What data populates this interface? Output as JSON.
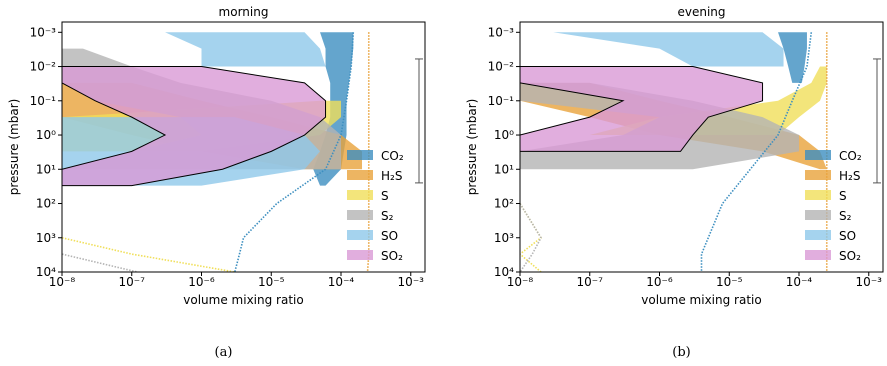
{
  "chart_data": [
    {
      "type": "band",
      "title": "morning",
      "caption": "(a)",
      "x_label": "volume mixing ratio",
      "y_label": "pressure (mbar)",
      "log_x": true,
      "log_y": true,
      "xlim": [
        1e-08,
        0.0016
      ],
      "ylim": [
        10000,
        0.0005
      ],
      "xticks": [
        {
          "value": 1e-08,
          "label": "10⁻⁸"
        },
        {
          "value": 1e-07,
          "label": "10⁻⁷"
        },
        {
          "value": 1e-06,
          "label": "10⁻⁶"
        },
        {
          "value": 1e-05,
          "label": "10⁻⁵"
        },
        {
          "value": 0.0001,
          "label": "10⁻⁴"
        },
        {
          "value": 0.001,
          "label": "10⁻³"
        }
      ],
      "yticks": [
        {
          "value": 0.001,
          "label": "10⁻³"
        },
        {
          "value": 0.01,
          "label": "10⁻²"
        },
        {
          "value": 0.1,
          "label": "10⁻¹"
        },
        {
          "value": 1,
          "label": "10⁰"
        },
        {
          "value": 10,
          "label": "10¹"
        },
        {
          "value": 100,
          "label": "10²"
        },
        {
          "value": 1000,
          "label": "10³"
        },
        {
          "value": 10000,
          "label": "10⁴"
        }
      ],
      "legend": "lower right",
      "bracket": [
        0.006,
        25
      ],
      "pressure": [
        0.001,
        0.003,
        0.01,
        0.03,
        0.1,
        0.3,
        1,
        3,
        10,
        30,
        100
      ],
      "series": [
        {
          "name": "CO₂",
          "color": "#3d8fc0",
          "low": [
            5e-05,
            6e-05,
            6e-05,
            7e-05,
            7e-05,
            7e-05,
            6e-05,
            5e-05,
            4e-05,
            5e-05,
            null
          ],
          "high": [
            0.00015,
            0.00015,
            0.00014,
            0.00013,
            0.00012,
            0.00012,
            0.00012,
            0.00011,
            0.0001,
            6e-05,
            null
          ]
        },
        {
          "name": "H₂S",
          "color": "#e9a23b",
          "low": [
            null,
            null,
            null,
            1e-08,
            1e-08,
            1e-08,
            1e-07,
            1e-06,
            3e-05,
            null,
            null
          ],
          "high": [
            null,
            null,
            null,
            1e-07,
            1e-06,
            1e-05,
            0.0001,
            0.0002,
            0.0002,
            null,
            null
          ]
        },
        {
          "name": "S",
          "color": "#f0df5a",
          "low": [
            null,
            null,
            null,
            null,
            5e-05,
            1e-08,
            1e-08,
            1e-08,
            null,
            null,
            null
          ],
          "high": [
            null,
            null,
            null,
            null,
            0.0001,
            0.0001,
            5e-05,
            1e-06,
            null,
            null,
            null
          ]
        },
        {
          "name": "S₂",
          "color": "#b4b4b4",
          "low": [
            null,
            1e-08,
            1e-08,
            1e-08,
            3e-08,
            5e-07,
            1e-06,
            1e-07,
            1e-08,
            null,
            null
          ],
          "high": [
            null,
            2e-08,
            1e-07,
            5e-07,
            1e-05,
            5e-05,
            0.0001,
            0.0001,
            0.0001,
            null,
            null
          ]
        },
        {
          "name": "SO",
          "color": "#8ec8ea",
          "low": [
            3e-07,
            1e-06,
            1e-06,
            null,
            null,
            1e-08,
            1e-08,
            1e-08,
            1e-08,
            1e-08,
            null
          ],
          "high": [
            3e-05,
            5e-05,
            6e-05,
            null,
            null,
            3e-06,
            3e-05,
            5e-05,
            3e-05,
            1e-06,
            null
          ]
        },
        {
          "name": "SO₂",
          "color": "#d99ad6",
          "edgecolor": "#000000",
          "low": [
            null,
            null,
            1e-08,
            1e-08,
            3e-08,
            1e-07,
            3e-07,
            1e-07,
            1e-08,
            1e-08,
            null
          ],
          "high": [
            null,
            null,
            1e-06,
            3e-05,
            6e-05,
            6e-05,
            3e-05,
            1e-05,
            2e-06,
            1e-07,
            null
          ]
        }
      ],
      "profile_pressure": [
        0.001,
        0.01,
        0.1,
        1,
        10,
        100,
        1000,
        3000,
        10000
      ],
      "profiles": [
        {
          "color": "#3d8fc0",
          "values": [
            0.00015,
            0.00014,
            0.00012,
            0.0001,
            6e-05,
            1.2e-05,
            4e-06,
            3.5e-06,
            3e-06
          ]
        },
        {
          "color": "#e9a23b",
          "values": [
            0.00025,
            0.00025,
            0.00025,
            0.00025,
            0.00025,
            0.00025,
            0.00025,
            0.00025,
            0.00024
          ]
        },
        {
          "color": "#f0df5a",
          "values": [
            null,
            null,
            null,
            null,
            null,
            null,
            1e-08,
            1e-07,
            3e-06
          ]
        },
        {
          "color": "#b4b4b4",
          "values": [
            null,
            null,
            null,
            null,
            null,
            null,
            null,
            1e-08,
            1.2e-07
          ]
        }
      ]
    },
    {
      "type": "band",
      "title": "evening",
      "caption": "(b)",
      "x_label": "volume mixing ratio",
      "y_label": "pressure (mbar)",
      "log_x": true,
      "log_y": true,
      "xlim": [
        1e-08,
        0.0016
      ],
      "ylim": [
        10000,
        0.0005
      ],
      "xticks": [
        {
          "value": 1e-08,
          "label": "10⁻⁸"
        },
        {
          "value": 1e-07,
          "label": "10⁻⁷"
        },
        {
          "value": 1e-06,
          "label": "10⁻⁶"
        },
        {
          "value": 1e-05,
          "label": "10⁻⁵"
        },
        {
          "value": 0.0001,
          "label": "10⁻⁴"
        },
        {
          "value": 0.001,
          "label": "10⁻³"
        }
      ],
      "yticks": [
        {
          "value": 0.001,
          "label": "10⁻³"
        },
        {
          "value": 0.01,
          "label": "10⁻²"
        },
        {
          "value": 0.1,
          "label": "10⁻¹"
        },
        {
          "value": 1,
          "label": "10⁰"
        },
        {
          "value": 10,
          "label": "10¹"
        },
        {
          "value": 100,
          "label": "10²"
        },
        {
          "value": 1000,
          "label": "10³"
        },
        {
          "value": 10000,
          "label": "10⁴"
        }
      ],
      "legend": "lower right",
      "bracket": [
        0.006,
        25
      ],
      "pressure": [
        0.001,
        0.003,
        0.01,
        0.03,
        0.1,
        0.3,
        1,
        3,
        10,
        30,
        100
      ],
      "series": [
        {
          "name": "CO₂",
          "color": "#3d8fc0",
          "low": [
            5e-05,
            6e-05,
            7e-05,
            8e-05,
            null,
            null,
            null,
            null,
            null,
            null,
            null
          ],
          "high": [
            0.00013,
            0.00013,
            0.00012,
            0.00011,
            null,
            null,
            null,
            null,
            null,
            null,
            null
          ]
        },
        {
          "name": "H₂S",
          "color": "#e9a23b",
          "low": [
            null,
            null,
            null,
            1e-08,
            1e-08,
            1e-07,
            1e-06,
            3e-05,
            0.0002,
            null,
            null
          ],
          "high": [
            null,
            null,
            null,
            1e-07,
            1e-06,
            1e-05,
            0.0001,
            0.0002,
            0.00025,
            null,
            null
          ]
        },
        {
          "name": "S",
          "color": "#f0df5a",
          "low": [
            null,
            null,
            0.0002,
            0.00015,
            5e-05,
            1e-06,
            1e-07,
            null,
            null,
            null,
            null
          ],
          "high": [
            null,
            null,
            0.00025,
            0.00025,
            0.0002,
            0.0001,
            5e-05,
            null,
            null,
            null,
            null
          ]
        },
        {
          "name": "S₂",
          "color": "#b4b4b4",
          "low": [
            null,
            null,
            null,
            1e-08,
            1e-08,
            1e-06,
            3e-07,
            1e-08,
            1e-08,
            null,
            null
          ],
          "high": [
            null,
            null,
            null,
            1e-07,
            3e-06,
            3e-05,
            0.0001,
            0.0001,
            3e-06,
            null,
            null
          ]
        },
        {
          "name": "SO",
          "color": "#8ec8ea",
          "low": [
            3e-08,
            1e-06,
            3e-06,
            null,
            null,
            null,
            null,
            null,
            null,
            null,
            null
          ],
          "high": [
            3e-05,
            6e-05,
            6e-05,
            null,
            null,
            null,
            null,
            null,
            null,
            null,
            null
          ]
        },
        {
          "name": "SO₂",
          "color": "#d99ad6",
          "edgecolor": "#000000",
          "low": [
            null,
            null,
            1e-08,
            1e-08,
            3e-07,
            1e-07,
            1e-08,
            1e-08,
            null,
            null,
            null
          ],
          "high": [
            null,
            null,
            3e-06,
            3e-05,
            3e-05,
            5e-06,
            3e-06,
            2e-06,
            null,
            null,
            null
          ]
        }
      ],
      "profile_pressure": [
        0.001,
        0.01,
        0.1,
        1,
        10,
        100,
        1000,
        3000,
        10000
      ],
      "profiles": [
        {
          "color": "#3d8fc0",
          "values": [
            0.00015,
            0.00013,
            8e-05,
            5e-05,
            2e-05,
            8e-06,
            5e-06,
            4e-06,
            4e-06
          ]
        },
        {
          "color": "#e9a23b",
          "values": [
            0.00025,
            0.00025,
            0.00025,
            0.00025,
            0.00025,
            0.00025,
            0.00025,
            0.00025,
            0.00025
          ]
        },
        {
          "color": "#f0df5a",
          "values": [
            null,
            null,
            null,
            null,
            null,
            1e-08,
            2e-08,
            1e-08,
            2e-08
          ]
        },
        {
          "color": "#b4b4b4",
          "values": [
            null,
            null,
            null,
            null,
            null,
            1e-08,
            2e-08,
            1.5e-08,
            1e-08
          ]
        }
      ]
    }
  ]
}
